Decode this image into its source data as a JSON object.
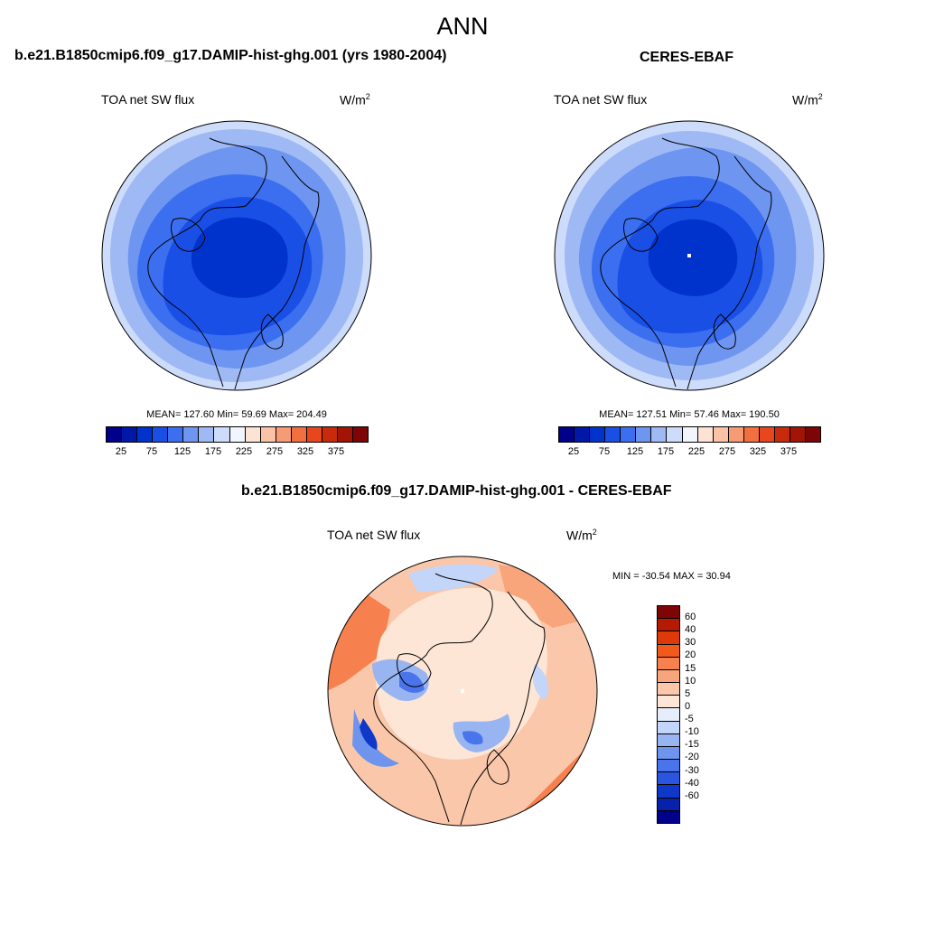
{
  "figure": {
    "title": "ANN"
  },
  "panels": [
    {
      "title": "b.e21.B1850cmip6.f09_g17.DAMIP-hist-ghg.001 (yrs 1980-2004)",
      "left_label": "TOA net SW flux",
      "units": "W/m",
      "units_sup": "2",
      "stats": "MEAN= 127.60  Min=  59.69  Max= 204.49"
    },
    {
      "title": "CERES-EBAF",
      "left_label": "TOA net SW flux",
      "units": "W/m",
      "units_sup": "2",
      "stats": "MEAN= 127.51  Min=  57.46  Max= 190.50"
    },
    {
      "title": "b.e21.B1850cmip6.f09_g17.DAMIP-hist-ghg.001 - CERES-EBAF",
      "left_label": "TOA net SW flux",
      "units": "W/m",
      "units_sup": "2",
      "stats": "MIN = -30.54 MAX =  30.94"
    }
  ],
  "colorbar_abs": {
    "colors": [
      "#00008b",
      "#0018a8",
      "#0033cc",
      "#1a4fe6",
      "#3b6ff0",
      "#6e95f0",
      "#9fb9f5",
      "#cddcfa",
      "#f1f6fd",
      "#fde3d3",
      "#fbc2a5",
      "#f79b74",
      "#f2703f",
      "#e8461c",
      "#c82a0c",
      "#a11406",
      "#7e0505"
    ],
    "tick_labels": [
      "25",
      "75",
      "125",
      "175",
      "225",
      "275",
      "325",
      "375"
    ]
  },
  "colorbar_diff": {
    "colors": [
      "#7e0505",
      "#b51a02",
      "#dd3a08",
      "#f25a1c",
      "#f6804e",
      "#f9a57c",
      "#fbc7aa",
      "#fde6d6",
      "#e6eefb",
      "#c3d5f8",
      "#98b5f2",
      "#6e94ee",
      "#4a74eb",
      "#2a55e0",
      "#1038c8",
      "#0821aa",
      "#00008b"
    ],
    "tick_labels": [
      "60",
      "40",
      "30",
      "20",
      "15",
      "10",
      "5",
      "0",
      "-5",
      "-10",
      "-15",
      "-20",
      "-30",
      "-40",
      "-60"
    ]
  }
}
